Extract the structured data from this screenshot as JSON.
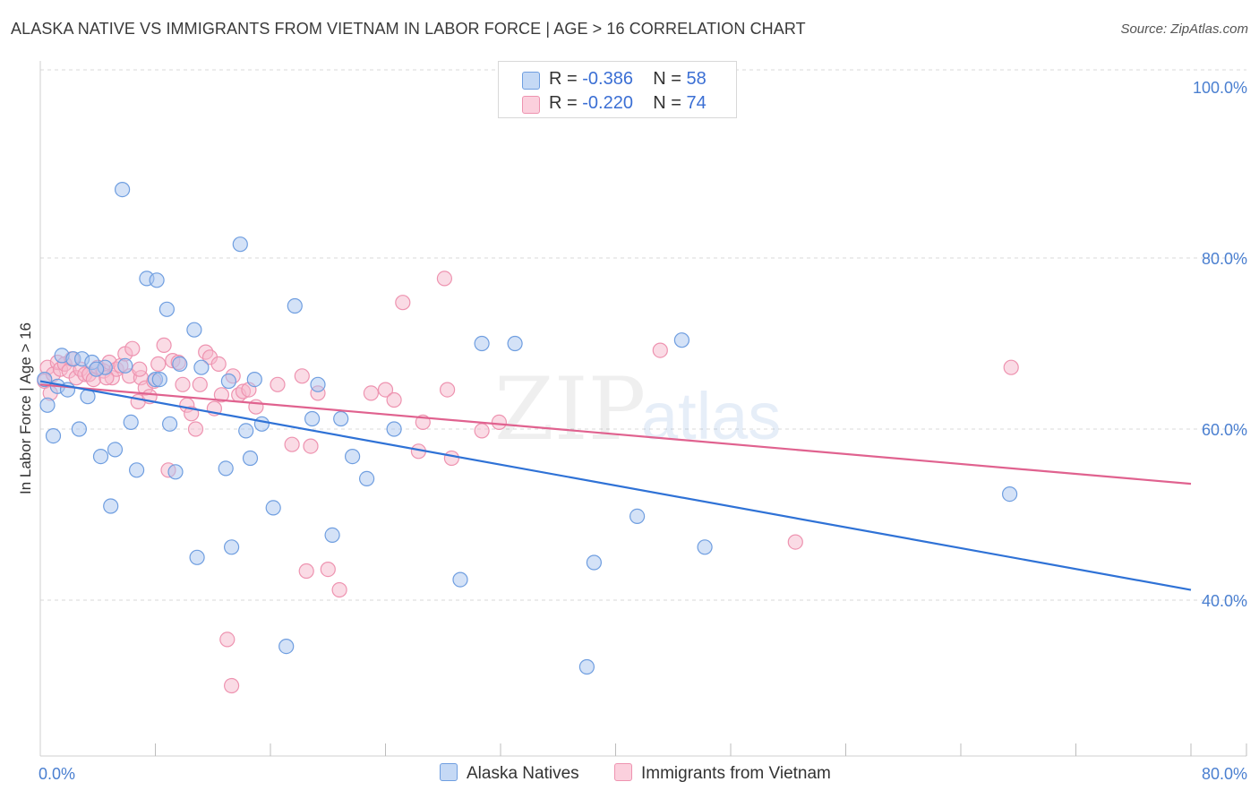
{
  "title": "ALASKA NATIVE VS IMMIGRANTS FROM VIETNAM IN LABOR FORCE | AGE > 16 CORRELATION CHART",
  "source": "Source: ZipAtlas.com",
  "watermark": {
    "zip": "ZIP",
    "atlas": "atlas"
  },
  "colors": {
    "blue_fill": "#a9c6f0",
    "blue_stroke": "#6f9ee0",
    "blue_line": "#2f72d6",
    "pink_fill": "#f6b8cb",
    "pink_stroke": "#ee93b0",
    "pink_line": "#e0628f",
    "tick_text": "#4a7fd0",
    "grid": "#d9d9d9"
  },
  "legend": {
    "rows": [
      {
        "r_label": "R = ",
        "r_value": "-0.386",
        "n_label": "N = ",
        "n_value": "58"
      },
      {
        "r_label": "R = ",
        "r_value": "-0.220",
        "n_label": "N = ",
        "n_value": "74"
      }
    ]
  },
  "bottom_legend": {
    "series1": "Alaska Natives",
    "series2": "Immigrants from Vietnam"
  },
  "chart_data": {
    "type": "scatter",
    "xlabel": "",
    "ylabel": "In Labor Force | Age > 16",
    "xlim": [
      0,
      80
    ],
    "ylim": [
      22,
      104
    ],
    "x_tick_labels": [
      {
        "value": 0,
        "label": "0.0%"
      },
      {
        "value": 80,
        "label": "80.0%"
      }
    ],
    "y_tick_labels": [
      {
        "value": 100,
        "label": "100.0%"
      },
      {
        "value": 80,
        "label": "80.0%"
      },
      {
        "value": 60,
        "label": "60.0%"
      },
      {
        "value": 40,
        "label": "40.0%"
      }
    ],
    "y_gridlines": [
      102,
      80,
      60,
      40
    ],
    "series": [
      {
        "name": "Alaska Natives",
        "r": -0.386,
        "n": 58,
        "trend": {
          "x": [
            0,
            80
          ],
          "y": [
            65.6,
            41.2
          ]
        },
        "points": [
          [
            0.3,
            65.8
          ],
          [
            0.5,
            62.8
          ],
          [
            0.9,
            59.2
          ],
          [
            1.2,
            65.0
          ],
          [
            1.5,
            68.6
          ],
          [
            1.9,
            64.6
          ],
          [
            2.3,
            68.2
          ],
          [
            2.7,
            60.0
          ],
          [
            2.9,
            68.2
          ],
          [
            3.3,
            63.8
          ],
          [
            3.6,
            67.8
          ],
          [
            4.2,
            56.8
          ],
          [
            4.5,
            67.2
          ],
          [
            4.9,
            51.0
          ],
          [
            5.2,
            57.6
          ],
          [
            5.7,
            88.0
          ],
          [
            5.9,
            67.4
          ],
          [
            6.3,
            60.8
          ],
          [
            6.7,
            55.2
          ],
          [
            7.4,
            77.6
          ],
          [
            8.0,
            65.8
          ],
          [
            8.1,
            77.4
          ],
          [
            8.3,
            65.8
          ],
          [
            8.8,
            74.0
          ],
          [
            9.0,
            60.6
          ],
          [
            9.4,
            55.0
          ],
          [
            9.7,
            67.6
          ],
          [
            10.7,
            71.6
          ],
          [
            10.9,
            45.0
          ],
          [
            11.2,
            67.2
          ],
          [
            12.9,
            55.4
          ],
          [
            13.1,
            65.6
          ],
          [
            13.3,
            46.2
          ],
          [
            13.9,
            81.6
          ],
          [
            14.3,
            59.8
          ],
          [
            14.6,
            56.6
          ],
          [
            14.9,
            65.8
          ],
          [
            15.4,
            60.6
          ],
          [
            16.2,
            50.8
          ],
          [
            17.1,
            34.6
          ],
          [
            17.7,
            74.4
          ],
          [
            18.9,
            61.2
          ],
          [
            19.3,
            65.2
          ],
          [
            20.3,
            47.6
          ],
          [
            20.9,
            61.2
          ],
          [
            21.7,
            56.8
          ],
          [
            22.7,
            54.2
          ],
          [
            24.6,
            60.0
          ],
          [
            29.2,
            42.4
          ],
          [
            30.7,
            70.0
          ],
          [
            33.0,
            70.0
          ],
          [
            38.0,
            32.2
          ],
          [
            38.5,
            44.4
          ],
          [
            41.5,
            49.8
          ],
          [
            44.6,
            70.4
          ],
          [
            46.2,
            46.2
          ],
          [
            67.4,
            52.4
          ],
          [
            3.9,
            67.0
          ]
        ]
      },
      {
        "name": "Immigrants from Vietnam",
        "r": -0.22,
        "n": 74,
        "trend": {
          "x": [
            0,
            80
          ],
          "y": [
            65.2,
            53.6
          ]
        },
        "points": [
          [
            0.3,
            65.6
          ],
          [
            0.5,
            67.2
          ],
          [
            0.7,
            64.2
          ],
          [
            0.9,
            66.4
          ],
          [
            1.2,
            67.8
          ],
          [
            1.4,
            67.0
          ],
          [
            1.7,
            67.6
          ],
          [
            2.0,
            66.8
          ],
          [
            2.2,
            68.2
          ],
          [
            2.5,
            66.0
          ],
          [
            2.8,
            67.0
          ],
          [
            3.1,
            66.4
          ],
          [
            3.4,
            66.4
          ],
          [
            3.7,
            65.8
          ],
          [
            4.0,
            67.2
          ],
          [
            4.4,
            66.8
          ],
          [
            4.8,
            67.8
          ],
          [
            5.0,
            66.0
          ],
          [
            5.3,
            67.0
          ],
          [
            5.6,
            67.4
          ],
          [
            5.9,
            68.8
          ],
          [
            6.2,
            66.2
          ],
          [
            6.4,
            69.4
          ],
          [
            6.8,
            63.2
          ],
          [
            7.0,
            66.0
          ],
          [
            7.3,
            64.8
          ],
          [
            7.6,
            63.8
          ],
          [
            7.9,
            65.6
          ],
          [
            8.2,
            67.6
          ],
          [
            8.6,
            69.8
          ],
          [
            8.9,
            55.2
          ],
          [
            9.2,
            68.0
          ],
          [
            9.6,
            67.8
          ],
          [
            9.9,
            65.2
          ],
          [
            10.2,
            62.8
          ],
          [
            10.5,
            61.8
          ],
          [
            10.8,
            60.0
          ],
          [
            11.1,
            65.2
          ],
          [
            11.5,
            69.0
          ],
          [
            11.8,
            68.4
          ],
          [
            12.1,
            62.4
          ],
          [
            12.6,
            64.0
          ],
          [
            13.0,
            35.4
          ],
          [
            13.3,
            30.0
          ],
          [
            13.4,
            66.2
          ],
          [
            13.8,
            64.0
          ],
          [
            14.1,
            64.4
          ],
          [
            14.5,
            64.6
          ],
          [
            15.0,
            62.6
          ],
          [
            16.5,
            65.2
          ],
          [
            17.5,
            58.2
          ],
          [
            18.2,
            66.2
          ],
          [
            18.8,
            58.0
          ],
          [
            19.3,
            64.2
          ],
          [
            18.5,
            43.4
          ],
          [
            20.0,
            43.6
          ],
          [
            20.8,
            41.2
          ],
          [
            23.0,
            64.2
          ],
          [
            24.0,
            64.6
          ],
          [
            24.6,
            63.4
          ],
          [
            25.2,
            74.8
          ],
          [
            26.3,
            57.4
          ],
          [
            26.6,
            60.8
          ],
          [
            28.1,
            77.6
          ],
          [
            28.3,
            64.6
          ],
          [
            28.6,
            56.6
          ],
          [
            30.7,
            59.8
          ],
          [
            31.9,
            60.8
          ],
          [
            43.1,
            69.2
          ],
          [
            52.5,
            46.8
          ],
          [
            67.5,
            67.2
          ],
          [
            4.6,
            66.0
          ],
          [
            6.9,
            67.0
          ],
          [
            12.4,
            67.6
          ]
        ]
      }
    ]
  }
}
